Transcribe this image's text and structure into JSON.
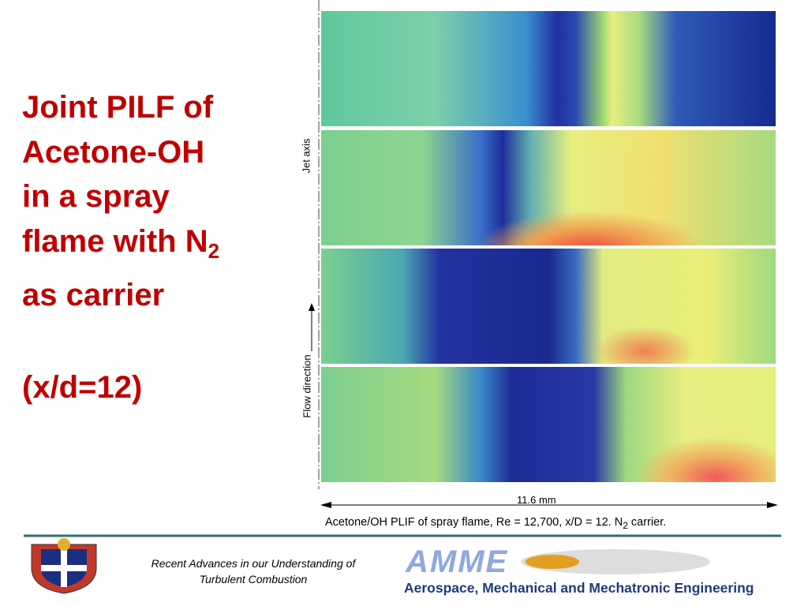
{
  "title": {
    "line1": "Joint PILF of",
    "line2": "Acetone-OH",
    "line3": "in a spray",
    "line4": "flame with N",
    "line4_sub": "2",
    "line5": "as carrier",
    "line6": "(x/d=12)"
  },
  "figure": {
    "jet_axis": "Jet axis",
    "flow_direction": "Flow direction",
    "scale": "11.6 mm",
    "caption": "Acetone/OH PLIF of spray flame, Re = 12,700, x/D = 12. N",
    "caption_sub": "2",
    "caption_end": " carrier."
  },
  "footer": {
    "line1": "Recent Advances in our Understanding of",
    "line2": "Turbulent Combustion",
    "logo": "AMME",
    "department": "Aerospace, Mechanical and Mechatronic Engineering"
  }
}
